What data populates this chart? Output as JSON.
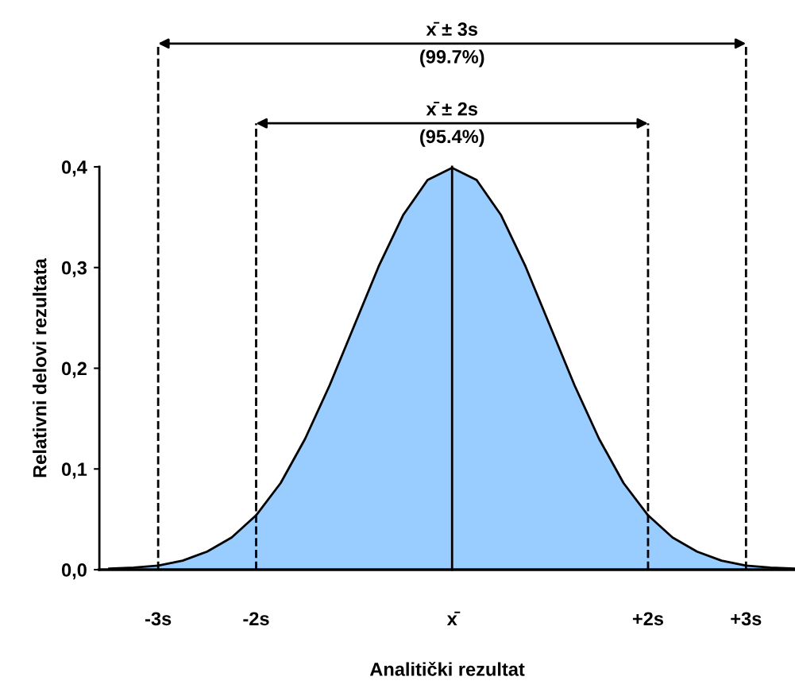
{
  "chart_data": {
    "type": "area",
    "xlabel": "Analitički rezultat",
    "ylabel": "Relativni delovi rezultata",
    "x": [
      -3.5,
      -3.25,
      -3.0,
      -2.75,
      -2.5,
      -2.25,
      -2.0,
      -1.75,
      -1.5,
      -1.25,
      -1.0,
      -0.75,
      -0.5,
      -0.25,
      0.0,
      0.25,
      0.5,
      0.75,
      1.0,
      1.25,
      1.5,
      1.75,
      2.0,
      2.25,
      2.5,
      2.75,
      3.0,
      3.25,
      3.5
    ],
    "series": [
      {
        "color": "#99ccff",
        "values": [
          0.001,
          0.002,
          0.004,
          0.009,
          0.018,
          0.032,
          0.054,
          0.086,
          0.13,
          0.183,
          0.242,
          0.301,
          0.352,
          0.387,
          0.399,
          0.387,
          0.352,
          0.301,
          0.242,
          0.183,
          0.13,
          0.086,
          0.054,
          0.032,
          0.018,
          0.009,
          0.004,
          0.002,
          0.001
        ]
      }
    ],
    "xlim": [
      -3.6,
      3.5
    ],
    "ylim": [
      0,
      0.4
    ],
    "xticks": [
      {
        "value": -3,
        "label": "-3s"
      },
      {
        "value": -2,
        "label": "-2s"
      },
      {
        "value": 0,
        "label": "x̄"
      },
      {
        "value": 2,
        "label": "+2s"
      },
      {
        "value": 3,
        "label": "+3s"
      }
    ],
    "yticks": [
      {
        "value": 0,
        "label": "0,0"
      },
      {
        "value": 0.1,
        "label": "0,1"
      },
      {
        "value": 0.2,
        "label": "0,2"
      },
      {
        "value": 0.3,
        "label": "0,3"
      },
      {
        "value": 0.4,
        "label": "0,4"
      }
    ],
    "ref_lines": [
      {
        "axis": "x",
        "value": 0,
        "line_style": "solid"
      },
      {
        "axis": "x",
        "value": -3,
        "line_style": "dashed"
      },
      {
        "axis": "x",
        "value": 3,
        "line_style": "dashed"
      },
      {
        "axis": "x",
        "value": -2,
        "line_style": "dashed"
      },
      {
        "axis": "x",
        "value": 2,
        "line_style": "dashed"
      }
    ],
    "annotations": [
      "x̄ ± 3s\n(99.7%)",
      "x̄ ± 2s\n(95.4%)"
    ]
  }
}
